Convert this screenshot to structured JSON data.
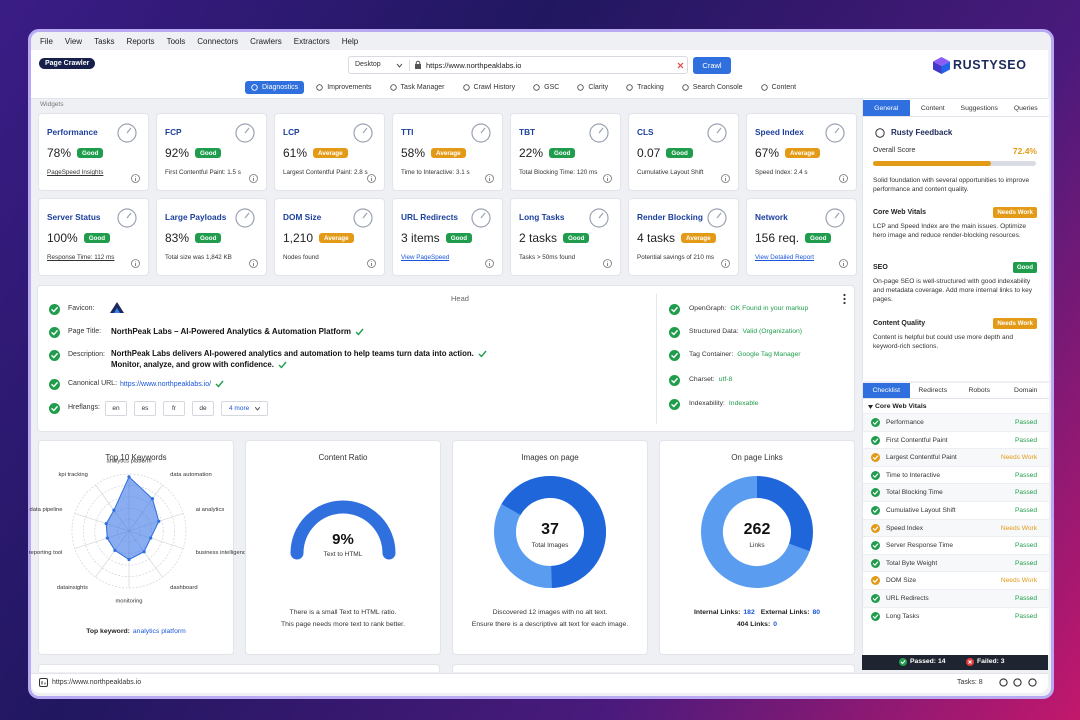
{
  "menu": [
    "File",
    "View",
    "Tasks",
    "Reports",
    "Tools",
    "Connectors",
    "Crawlers",
    "Extractors",
    "Help"
  ],
  "toolbar": {
    "mode": "Page Crawler",
    "device": "Desktop",
    "url": "https://www.northpeaklabs.io",
    "crawl": "Crawl",
    "brand": "RUSTYSEO"
  },
  "tabs": [
    "Diagnostics",
    "Improvements",
    "Task Manager",
    "Crawl History",
    "GSC",
    "Clarity",
    "Tracking",
    "Search Console",
    "Content"
  ],
  "widgets_label": "Widgets",
  "widgets": [
    {
      "title": "Performance",
      "value": "78%",
      "badge": "Good",
      "badge_color": "#1f9d4c",
      "detail": "PageSpeed Insights",
      "underline": true
    },
    {
      "title": "FCP",
      "value": "92%",
      "badge": "Good",
      "badge_color": "#1f9d4c",
      "detail": "First Contentful Paint: 1.5 s"
    },
    {
      "title": "LCP",
      "value": "61%",
      "badge": "Average",
      "badge_color": "#e39a17",
      "detail": "Largest Contentful Paint: 2.8 s"
    },
    {
      "title": "TTI",
      "value": "58%",
      "badge": "Average",
      "badge_color": "#e39a17",
      "detail": "Time to Interactive: 3.1 s"
    },
    {
      "title": "TBT",
      "value": "22%",
      "badge": "Good",
      "badge_color": "#1f9d4c",
      "detail": "Total Blocking Time: 120 ms"
    },
    {
      "title": "CLS",
      "value": "0.07",
      "badge": "Good",
      "badge_color": "#1f9d4c",
      "detail": "Cumulative Layout Shift"
    },
    {
      "title": "Speed Index",
      "value": "67%",
      "badge": "Average",
      "badge_color": "#e39a17",
      "detail": "Speed Index: 2.4 s"
    },
    {
      "title": "Server Status",
      "value": "100%",
      "badge": "Good",
      "badge_color": "#1f9d4c",
      "detail": "Response Time: 112 ms",
      "underline": true
    },
    {
      "title": "Large Payloads",
      "value": "83%",
      "badge": "Good",
      "badge_color": "#1f9d4c",
      "detail": "Total size was 1,842 KB"
    },
    {
      "title": "DOM Size",
      "value": "1,210",
      "badge": "Average",
      "badge_color": "#e39a17",
      "detail": "Nodes found"
    },
    {
      "title": "URL Redirects",
      "value": "3 items",
      "badge": "Good",
      "badge_color": "#1f9d4c",
      "detail": "View PageSpeed",
      "underline": true,
      "detail_color": "#1a56db"
    },
    {
      "title": "Long Tasks",
      "value": "2 tasks",
      "badge": "Good",
      "badge_color": "#1f9d4c",
      "detail": "Tasks > 50ms found"
    },
    {
      "title": "Render Blocking",
      "value": "4 tasks",
      "badge": "Average",
      "badge_color": "#e39a17",
      "detail": "Potential savings of 210 ms"
    },
    {
      "title": "Network",
      "value": "156 req.",
      "badge": "Good",
      "badge_color": "#1f9d4c",
      "detail": "View Detailed Report",
      "underline": true,
      "detail_color": "#1a56db"
    }
  ],
  "head": {
    "title": "Head",
    "favicon": "Favicon:",
    "page_title_label": "Page Title:",
    "page_title": "NorthPeak Labs – AI-Powered Analytics & Automation Platform",
    "description_label": "Description:",
    "description": [
      "NorthPeak Labs delivers AI-powered analytics and automation to help teams turn data into action.",
      "Monitor, analyze, and grow with confidence."
    ],
    "canonical_label": "Canonical URL:",
    "canonical": "https://www.northpeaklabs.io/",
    "hreflang_label": "Hreflangs:",
    "hreflangs": [
      "en",
      "es",
      "fr",
      "de"
    ],
    "hreflang_more": "4 more",
    "checks": [
      {
        "label": "OpenGraph:",
        "value": "OK Found in your markup"
      },
      {
        "label": "Structured Data:",
        "value": "Valid (Organization)"
      },
      {
        "label": "Tag Container:",
        "value": "Google Tag Manager"
      },
      {
        "label": "Charset:",
        "value": "utf-8"
      },
      {
        "label": "Indexability:",
        "value": "Indexable"
      }
    ]
  },
  "keywords": {
    "title": "Top 10 Keywords",
    "labels": [
      "analytics platform",
      "data automation",
      "ai analytics",
      "business intelligence",
      "dashboard",
      "monitoring",
      "datainsights",
      "reporting tool",
      "data pipeline",
      "kpi tracking"
    ],
    "scores": [
      95,
      70,
      55,
      40,
      45,
      50,
      42,
      40,
      42,
      45
    ],
    "max": 100,
    "top_label": "Top keyword:",
    "top_value": "analytics platform"
  },
  "content_ratio": {
    "title": "Content Ratio",
    "value": "9%",
    "caption": "Text to HTML",
    "notes": [
      "There is a small Text to HTML ratio.",
      "This page needs more text to rank better."
    ]
  },
  "images": {
    "title": "Images on page",
    "value": 37,
    "caption": "Total Images",
    "notes": [
      "Discovered 12 images with no alt text.",
      "Ensure there is a descriptive alt text for each image."
    ]
  },
  "links": {
    "title": "On page Links",
    "value": 262,
    "caption": "Links",
    "internal_label": "Internal Links:",
    "internal": 182,
    "external_label": "External Links:",
    "external": 80,
    "broken_label": "404 Links:",
    "broken": 0
  },
  "feedback": {
    "tabs": [
      "General",
      "Content",
      "Suggestions",
      "Queries"
    ],
    "title": "Rusty Feedback",
    "score_label": "Overall Score",
    "score": {
      "value": 72.4,
      "label": "72.4%"
    },
    "summary": "Solid foundation with several opportunities to improve performance and content quality.",
    "sections": [
      {
        "title": "Core Web Vitals",
        "badge": "Needs Work",
        "badge_color": "#e39a17",
        "text": "LCP and Speed Index are the main issues. Optimize hero image and reduce render-blocking resources."
      },
      {
        "title": "SEO",
        "badge": "Good",
        "badge_color": "#1f9d4c",
        "text": "On-page SEO is well-structured with good indexability and metadata coverage. Add more internal links to key pages."
      },
      {
        "title": "Content Quality",
        "badge": "Needs Work",
        "badge_color": "#e39a17",
        "text": "Content is helpful but could use more depth and keyword-rich sections."
      }
    ]
  },
  "checklist": {
    "tabs": [
      "Checklist",
      "Redirects",
      "Robots",
      "Domain"
    ],
    "group": "Core Web Vitals",
    "items": [
      {
        "name": "Performance",
        "status": "Passed",
        "color": "#1f9d4c"
      },
      {
        "name": "First Contentful Paint",
        "status": "Passed",
        "color": "#1f9d4c"
      },
      {
        "name": "Largest Contentful Paint",
        "status": "Needs Work",
        "color": "#e39a17"
      },
      {
        "name": "Time to Interactive",
        "status": "Passed",
        "color": "#1f9d4c"
      },
      {
        "name": "Total Blocking Time",
        "status": "Passed",
        "color": "#1f9d4c"
      },
      {
        "name": "Cumulative Layout Shift",
        "status": "Passed",
        "color": "#1f9d4c"
      },
      {
        "name": "Speed Index",
        "status": "Needs Work",
        "color": "#e39a17"
      },
      {
        "name": "Server Response Time",
        "status": "Passed",
        "color": "#1f9d4c"
      },
      {
        "name": "Total Byte Weight",
        "status": "Passed",
        "color": "#1f9d4c"
      },
      {
        "name": "DOM Size",
        "status": "Needs Work",
        "color": "#e39a17"
      },
      {
        "name": "URL Redirects",
        "status": "Passed",
        "color": "#1f9d4c"
      },
      {
        "name": "Long Tasks",
        "status": "Passed",
        "color": "#1f9d4c"
      }
    ],
    "passed": "Passed: 14",
    "failed": "Failed: 3"
  },
  "status_bar": {
    "url": "https://www.northpeaklabs.io",
    "tasks": "Tasks: 8"
  }
}
